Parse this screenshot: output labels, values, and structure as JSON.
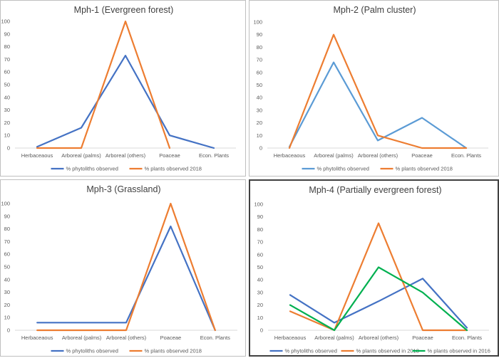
{
  "chart_data": [
    {
      "type": "line",
      "title": "Mph-1 (Evergreen forest)",
      "categories": [
        "Herbaceaous",
        "Arboreal (palms)",
        "Arboreal (others)",
        "Poaceae",
        "Econ. Plants"
      ],
      "ylim": [
        0,
        100
      ],
      "yticks": [
        0,
        10,
        20,
        30,
        40,
        50,
        60,
        70,
        80,
        90,
        100
      ],
      "grid": false,
      "legend": "bottom",
      "series": [
        {
          "name": "% phytoliths observed",
          "color": "#4472C4",
          "values": [
            1,
            16,
            73,
            10,
            0
          ]
        },
        {
          "name": "% plants observed 2018",
          "color": "#ED7D31",
          "values": [
            0,
            0,
            100,
            0,
            null
          ]
        }
      ]
    },
    {
      "type": "line",
      "title": "Mph-2 (Palm cluster)",
      "categories": [
        "Herbaceaous",
        "Arboreal (palms)",
        "Arboreal (others)",
        "Poaceae",
        "Econ. Plants"
      ],
      "ylim": [
        0,
        100
      ],
      "yticks": [
        0,
        10,
        20,
        30,
        40,
        50,
        60,
        70,
        80,
        90,
        100
      ],
      "grid": false,
      "legend": "bottom",
      "series": [
        {
          "name": "% phytoliths observed",
          "color": "#5B9BD5",
          "values": [
            1,
            68,
            6,
            24,
            0
          ]
        },
        {
          "name": "% plants observed 2018",
          "color": "#ED7D31",
          "values": [
            0,
            90,
            10,
            0,
            0
          ]
        }
      ]
    },
    {
      "type": "line",
      "title": "Mph-3 (Grassland)",
      "categories": [
        "Herbaceaous",
        "Arboreal (palms)",
        "Arboreal  (others)",
        "Poaceae",
        "Econ. Plants"
      ],
      "ylim": [
        0,
        100
      ],
      "yticks": [
        0,
        10,
        20,
        30,
        40,
        50,
        60,
        70,
        80,
        90,
        100
      ],
      "grid": false,
      "legend": "bottom",
      "series": [
        {
          "name": "% phytoliths observed",
          "color": "#4472C4",
          "values": [
            6,
            6,
            6,
            82,
            0
          ]
        },
        {
          "name": "% plants observed 2018",
          "color": "#ED7D31",
          "values": [
            0,
            0,
            0,
            100,
            0
          ]
        }
      ]
    },
    {
      "type": "line",
      "title": "Mph-4 (Partially evergreen forest)",
      "categories": [
        "Herbaceaous",
        "Arboreal (palms)",
        "Arboreal  (others)",
        "Poaceae",
        "Econ. Plants"
      ],
      "ylim": [
        0,
        100
      ],
      "yticks": [
        0,
        10,
        20,
        30,
        40,
        50,
        60,
        70,
        80,
        90,
        100
      ],
      "grid": false,
      "legend": "bottom",
      "series": [
        {
          "name": "% phytoliths observed",
          "color": "#4472C4",
          "values": [
            28,
            6,
            23,
            41,
            2
          ]
        },
        {
          "name": "% plants observed in 2018",
          "color": "#ED7D31",
          "values": [
            15,
            0,
            85,
            0,
            0
          ]
        },
        {
          "name": "% plants observed in 2016",
          "color": "#00B050",
          "values": [
            20,
            0,
            50,
            30,
            0
          ]
        }
      ]
    }
  ]
}
